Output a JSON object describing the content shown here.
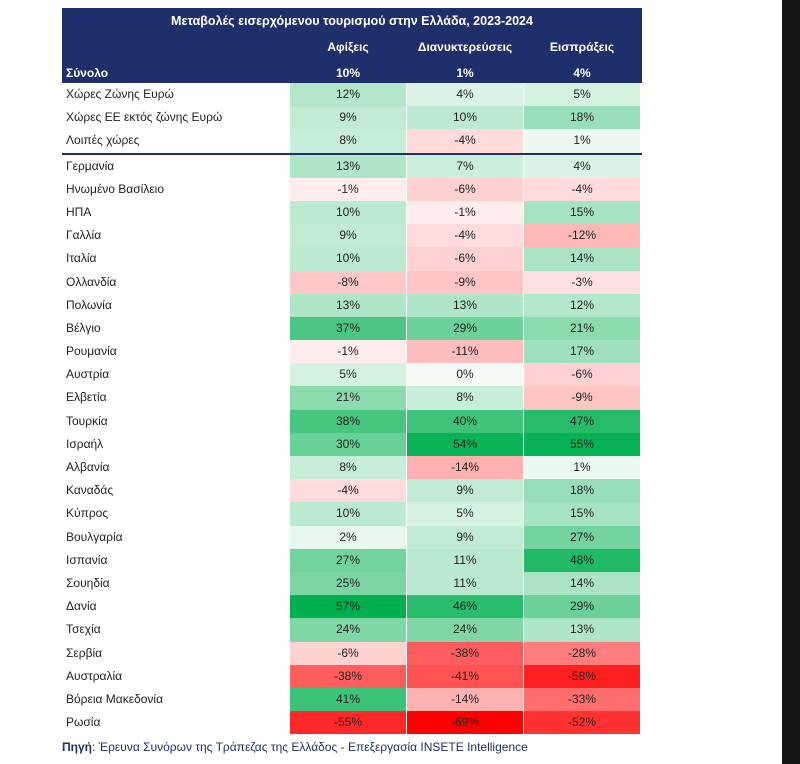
{
  "chart_data": {
    "type": "table",
    "title": "Μεταβολές εισερχόμενου τουρισμού στην Ελλάδα, 2023-2024",
    "columns": [
      "Αφίξεις",
      "Διανυκτερεύσεις",
      "Εισπράξεις"
    ],
    "total": {
      "label": "Σύνολο",
      "values": [
        "10%",
        "1%",
        "4%"
      ]
    },
    "group_rows": [
      {
        "label": "Χώρες Ζώνης Ευρώ",
        "values": [
          12,
          4,
          5
        ]
      },
      {
        "label": "Χώρες ΕΕ εκτός ζώνης Ευρώ",
        "values": [
          9,
          10,
          18
        ]
      },
      {
        "label": "Λοιπές χώρες",
        "values": [
          8,
          -4,
          1
        ]
      }
    ],
    "country_rows": [
      {
        "label": "Γερμανία",
        "values": [
          13,
          7,
          4
        ]
      },
      {
        "label": "Ηνωμένο Βασίλειο",
        "values": [
          -1,
          -6,
          -4
        ]
      },
      {
        "label": "ΗΠΑ",
        "values": [
          10,
          -1,
          15
        ]
      },
      {
        "label": "Γαλλία",
        "values": [
          9,
          -4,
          -12
        ]
      },
      {
        "label": "Ιταλία",
        "values": [
          10,
          -6,
          14
        ]
      },
      {
        "label": "Ολλανδία",
        "values": [
          -8,
          -9,
          -3
        ]
      },
      {
        "label": "Πολωνία",
        "values": [
          13,
          13,
          12
        ]
      },
      {
        "label": "Βέλγιο",
        "values": [
          37,
          29,
          21
        ]
      },
      {
        "label": "Ρουμανία",
        "values": [
          -1,
          -11,
          17
        ]
      },
      {
        "label": "Αυστρία",
        "values": [
          5,
          0,
          -6
        ]
      },
      {
        "label": "Ελβετία",
        "values": [
          21,
          8,
          -9
        ]
      },
      {
        "label": "Τουρκία",
        "values": [
          38,
          40,
          47
        ]
      },
      {
        "label": "Ισραήλ",
        "values": [
          30,
          54,
          55
        ]
      },
      {
        "label": "Αλβανία",
        "values": [
          8,
          -14,
          1
        ]
      },
      {
        "label": "Καναδάς",
        "values": [
          -4,
          9,
          18
        ]
      },
      {
        "label": "Κύπρος",
        "values": [
          10,
          5,
          15
        ]
      },
      {
        "label": "Βουλγαρία",
        "values": [
          2,
          9,
          27
        ]
      },
      {
        "label": "Ισπανία",
        "values": [
          27,
          11,
          48
        ]
      },
      {
        "label": "Σουηδία",
        "values": [
          25,
          11,
          14
        ]
      },
      {
        "label": "Δανία",
        "values": [
          57,
          46,
          29
        ]
      },
      {
        "label": "Τσεχία",
        "values": [
          24,
          24,
          13
        ]
      },
      {
        "label": "Σερβία",
        "values": [
          -6,
          -38,
          -28
        ]
      },
      {
        "label": "Αυστραλία",
        "values": [
          -38,
          -41,
          -58
        ]
      },
      {
        "label": "Βόρεια Μακεδονία",
        "values": [
          41,
          -14,
          -33
        ]
      },
      {
        "label": "Ρωσία",
        "values": [
          -55,
          -69,
          -52
        ]
      }
    ],
    "colors": {
      "positive": "#00b050",
      "negative": "#ff0000",
      "neutral": "#ffffff",
      "header": "#1f2f6b"
    }
  },
  "footer": {
    "source_label": "Πηγή",
    "source_text": ": Έρευνα Συνόρων της Τράπεζας της Ελλάδος - Επεξεργασία INSETE Intelligence"
  }
}
